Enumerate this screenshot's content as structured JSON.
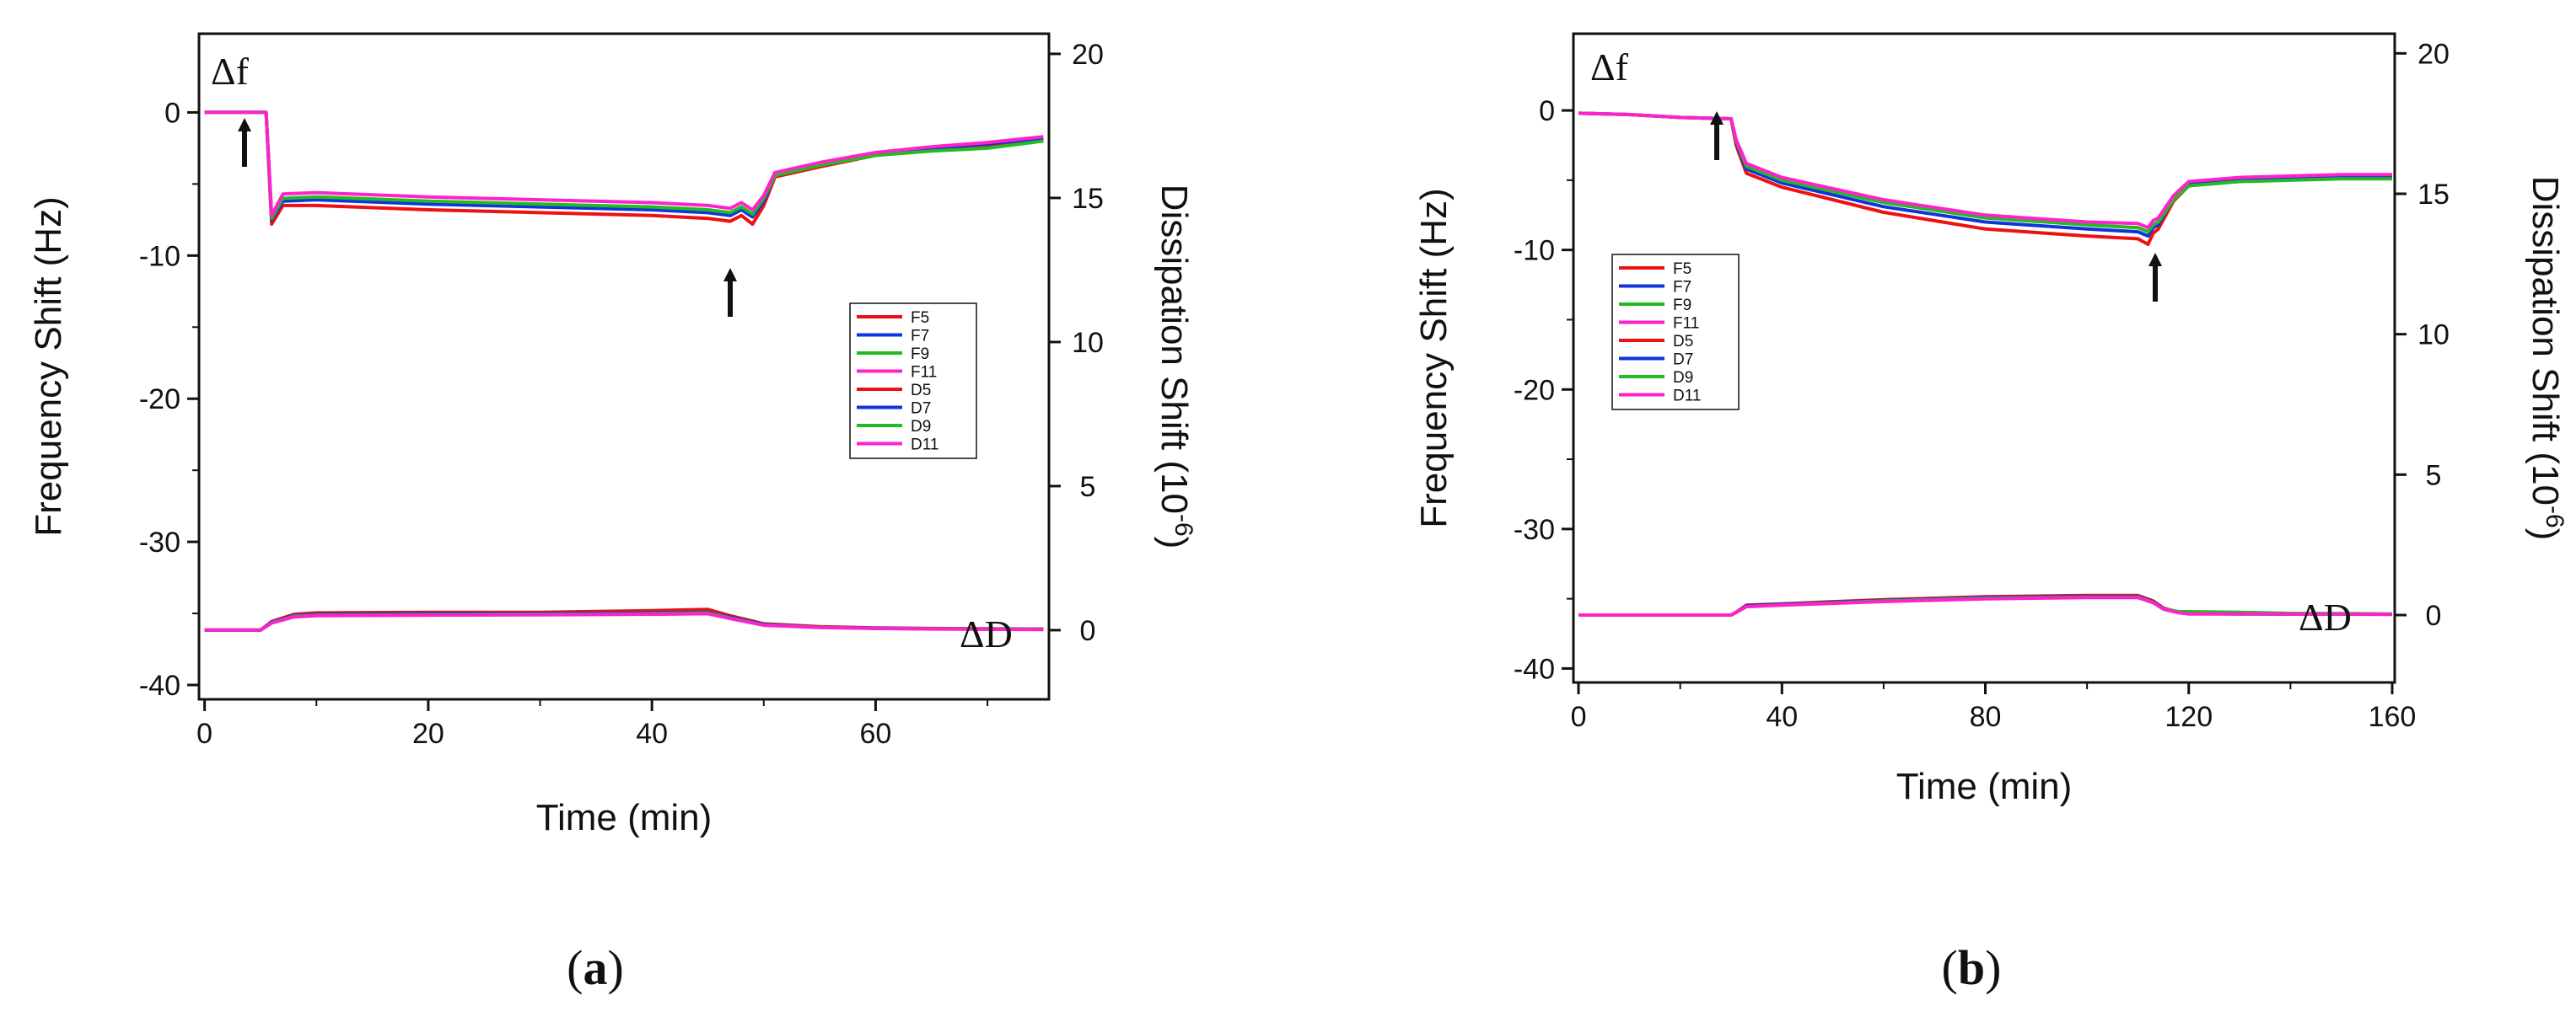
{
  "chart_data": [
    {
      "id": "a",
      "type": "line",
      "panel_label": {
        "open": "(",
        "letter": "a",
        "close": ")"
      },
      "xlabel": "Time (min)",
      "ylabel_left": "Frequency Shift (Hz)",
      "ylabel_right": {
        "text": "Dissipation Shift (10",
        "sup": "-6",
        "close": ")"
      },
      "xlim": [
        -0.5,
        75.5
      ],
      "xticks": [
        0,
        20,
        40,
        60
      ],
      "ylim_left": [
        -41,
        5.5
      ],
      "yticks_left": [
        0,
        -10,
        -20,
        -30,
        -40
      ],
      "ylim_right": [
        -2.4,
        20.7
      ],
      "yticks_right": [
        20,
        15,
        10,
        5,
        0
      ],
      "annotations": {
        "delta_f": "Δf",
        "delta_d": "ΔD",
        "arrows_at": [
          4,
          47
        ]
      },
      "legend": [
        "F5",
        "F7",
        "F9",
        "F11",
        "D5",
        "D7",
        "D9",
        "D11"
      ],
      "series": [
        {
          "name": "F5",
          "color": "#ee1111",
          "axis": "left",
          "x": [
            0,
            5.5,
            6,
            7,
            10,
            20,
            30,
            40,
            45,
            47,
            48,
            49,
            50,
            51,
            55,
            60,
            65,
            70,
            75
          ],
          "y": [
            0,
            0,
            -7.8,
            -6.5,
            -6.5,
            -6.8,
            -7.0,
            -7.2,
            -7.4,
            -7.6,
            -7.2,
            -7.8,
            -6.5,
            -4.5,
            -3.8,
            -3.0,
            -2.6,
            -2.3,
            -1.9
          ]
        },
        {
          "name": "F7",
          "color": "#1133dd",
          "axis": "left",
          "x": [
            0,
            5.5,
            6,
            7,
            10,
            20,
            30,
            40,
            45,
            47,
            48,
            49,
            50,
            51,
            55,
            60,
            65,
            70,
            75
          ],
          "y": [
            0,
            0,
            -7.5,
            -6.2,
            -6.1,
            -6.4,
            -6.6,
            -6.8,
            -7.0,
            -7.2,
            -6.8,
            -7.3,
            -6.2,
            -4.3,
            -3.6,
            -2.9,
            -2.5,
            -2.2,
            -1.8
          ]
        },
        {
          "name": "F9",
          "color": "#22bb22",
          "axis": "left",
          "x": [
            0,
            5.5,
            6,
            7,
            10,
            20,
            30,
            40,
            45,
            47,
            48,
            49,
            50,
            51,
            55,
            60,
            65,
            70,
            75
          ],
          "y": [
            0,
            0,
            -7.4,
            -6.0,
            -5.9,
            -6.2,
            -6.4,
            -6.6,
            -6.8,
            -7.0,
            -6.6,
            -7.1,
            -6.0,
            -4.4,
            -3.7,
            -3.0,
            -2.7,
            -2.5,
            -2.0
          ]
        },
        {
          "name": "F11",
          "color": "#ff22cc",
          "axis": "left",
          "x": [
            0,
            5.5,
            6,
            7,
            10,
            20,
            30,
            40,
            45,
            47,
            48,
            49,
            50,
            51,
            55,
            60,
            65,
            70,
            75
          ],
          "y": [
            0,
            0,
            -7.2,
            -5.7,
            -5.6,
            -5.9,
            -6.1,
            -6.3,
            -6.5,
            -6.7,
            -6.3,
            -6.8,
            -5.8,
            -4.2,
            -3.5,
            -2.8,
            -2.4,
            -2.1,
            -1.7
          ]
        },
        {
          "name": "D5",
          "color": "#ee1111",
          "axis": "right",
          "x": [
            0,
            5,
            6,
            8,
            10,
            20,
            30,
            40,
            45,
            47,
            50,
            55,
            60,
            65,
            70,
            75
          ],
          "y": [
            0,
            0,
            0.3,
            0.55,
            0.6,
            0.62,
            0.62,
            0.68,
            0.72,
            0.5,
            0.22,
            0.12,
            0.08,
            0.06,
            0.05,
            0.04
          ]
        },
        {
          "name": "D7",
          "color": "#1133dd",
          "axis": "right",
          "x": [
            0,
            5,
            6,
            8,
            10,
            20,
            30,
            40,
            45,
            47,
            50,
            55,
            60,
            65,
            70,
            75
          ],
          "y": [
            0,
            0,
            0.28,
            0.5,
            0.55,
            0.57,
            0.58,
            0.6,
            0.62,
            0.45,
            0.2,
            0.1,
            0.07,
            0.05,
            0.04,
            0.03
          ]
        },
        {
          "name": "D9",
          "color": "#22bb22",
          "axis": "right",
          "x": [
            0,
            5,
            6,
            8,
            10,
            20,
            30,
            40,
            45,
            47,
            50,
            55,
            60,
            65,
            70,
            75
          ],
          "y": [
            0,
            0,
            0.26,
            0.48,
            0.52,
            0.54,
            0.55,
            0.57,
            0.6,
            0.42,
            0.18,
            0.1,
            0.06,
            0.05,
            0.04,
            0.03
          ]
        },
        {
          "name": "D11",
          "color": "#ff22cc",
          "axis": "right",
          "x": [
            0,
            5,
            6,
            8,
            10,
            20,
            30,
            40,
            45,
            47,
            50,
            55,
            60,
            65,
            70,
            75
          ],
          "y": [
            0,
            0,
            0.25,
            0.46,
            0.5,
            0.52,
            0.53,
            0.55,
            0.57,
            0.4,
            0.17,
            0.09,
            0.06,
            0.04,
            0.03,
            0.02
          ]
        }
      ]
    },
    {
      "id": "b",
      "type": "line",
      "panel_label": {
        "open": "(",
        "letter": "b",
        "close": ")"
      },
      "xlabel": "Time (min)",
      "ylabel_left": "Frequency Shift (Hz)",
      "ylabel_right": {
        "text": "Dissipation Shift (10",
        "sup": "-6",
        "close": ")"
      },
      "xlim": [
        -1,
        160.5
      ],
      "xticks": [
        0,
        40,
        80,
        120,
        160
      ],
      "ylim_left": [
        -41,
        5.5
      ],
      "yticks_left": [
        0,
        -10,
        -20,
        -30,
        -40
      ],
      "ylim_right": [
        -2.4,
        20.7
      ],
      "yticks_right": [
        20,
        15,
        10,
        5,
        0
      ],
      "annotations": {
        "delta_f": "Δf",
        "delta_d": "ΔD",
        "arrows_at": [
          28,
          113
        ]
      },
      "legend": [
        "F5",
        "F7",
        "F9",
        "F11",
        "D5",
        "D7",
        "D9",
        "D11"
      ],
      "series": [
        {
          "name": "F5",
          "color": "#ee1111",
          "axis": "left",
          "x": [
            0,
            10,
            20,
            30,
            31,
            33,
            40,
            60,
            80,
            100,
            110,
            112,
            113,
            114,
            117,
            120,
            130,
            140,
            150,
            160
          ],
          "y": [
            -0.2,
            -0.3,
            -0.5,
            -0.6,
            -2.5,
            -4.5,
            -5.5,
            -7.3,
            -8.5,
            -9.0,
            -9.2,
            -9.6,
            -8.8,
            -8.5,
            -6.5,
            -5.4,
            -5.0,
            -4.9,
            -4.8,
            -4.8
          ]
        },
        {
          "name": "F7",
          "color": "#1133dd",
          "axis": "left",
          "x": [
            0,
            10,
            20,
            30,
            31,
            33,
            40,
            60,
            80,
            100,
            110,
            112,
            113,
            114,
            117,
            120,
            130,
            140,
            150,
            160
          ],
          "y": [
            -0.2,
            -0.3,
            -0.5,
            -0.6,
            -2.3,
            -4.2,
            -5.2,
            -6.9,
            -8.0,
            -8.5,
            -8.7,
            -9.0,
            -8.4,
            -8.2,
            -6.3,
            -5.2,
            -4.9,
            -4.8,
            -4.7,
            -4.7
          ]
        },
        {
          "name": "F9",
          "color": "#22bb22",
          "axis": "left",
          "x": [
            0,
            10,
            20,
            30,
            31,
            33,
            40,
            60,
            80,
            100,
            110,
            112,
            113,
            114,
            117,
            120,
            130,
            140,
            150,
            160
          ],
          "y": [
            -0.2,
            -0.3,
            -0.5,
            -0.6,
            -2.2,
            -4.0,
            -5.0,
            -6.6,
            -7.7,
            -8.2,
            -8.4,
            -8.7,
            -8.2,
            -8.0,
            -6.4,
            -5.4,
            -5.1,
            -5.0,
            -4.9,
            -4.9
          ]
        },
        {
          "name": "F11",
          "color": "#ff22cc",
          "axis": "left",
          "x": [
            0,
            10,
            20,
            30,
            31,
            33,
            40,
            60,
            80,
            100,
            110,
            112,
            113,
            114,
            117,
            120,
            130,
            140,
            150,
            160
          ],
          "y": [
            -0.2,
            -0.3,
            -0.5,
            -0.6,
            -2.1,
            -3.8,
            -4.8,
            -6.4,
            -7.5,
            -8.0,
            -8.1,
            -8.4,
            -7.9,
            -7.7,
            -6.1,
            -5.1,
            -4.8,
            -4.7,
            -4.6,
            -4.6
          ]
        },
        {
          "name": "D5",
          "color": "#ee1111",
          "axis": "right",
          "x": [
            0,
            10,
            20,
            30,
            31,
            33,
            40,
            60,
            80,
            100,
            110,
            113,
            115,
            118,
            120,
            130,
            140,
            150,
            160
          ],
          "y": [
            0,
            0,
            0,
            0,
            0.1,
            0.35,
            0.4,
            0.55,
            0.65,
            0.7,
            0.7,
            0.5,
            0.25,
            0.1,
            0.05,
            0.05,
            0.04,
            0.03,
            0.03
          ]
        },
        {
          "name": "D7",
          "color": "#1133dd",
          "axis": "right",
          "x": [
            0,
            10,
            20,
            30,
            31,
            33,
            40,
            60,
            80,
            100,
            110,
            113,
            115,
            118,
            120,
            130,
            140,
            150,
            160
          ],
          "y": [
            0,
            0,
            0,
            0,
            0.1,
            0.33,
            0.38,
            0.52,
            0.62,
            0.66,
            0.66,
            0.47,
            0.23,
            0.09,
            0.05,
            0.04,
            0.04,
            0.03,
            0.03
          ]
        },
        {
          "name": "D9",
          "color": "#22bb22",
          "axis": "right",
          "x": [
            0,
            10,
            20,
            30,
            31,
            33,
            40,
            60,
            80,
            100,
            110,
            113,
            115,
            118,
            120,
            130,
            140,
            150,
            160
          ],
          "y": [
            0,
            0,
            0,
            0,
            0.1,
            0.3,
            0.36,
            0.5,
            0.6,
            0.64,
            0.64,
            0.45,
            0.22,
            0.12,
            0.12,
            0.1,
            0.06,
            0.05,
            0.04
          ]
        },
        {
          "name": "D11",
          "color": "#ff22cc",
          "axis": "right",
          "x": [
            0,
            10,
            20,
            30,
            31,
            33,
            40,
            60,
            80,
            100,
            110,
            113,
            115,
            118,
            120,
            130,
            140,
            150,
            160
          ],
          "y": [
            0,
            0,
            0,
            0,
            0.1,
            0.3,
            0.35,
            0.48,
            0.58,
            0.62,
            0.62,
            0.44,
            0.21,
            0.08,
            0.04,
            0.04,
            0.03,
            0.03,
            0.02
          ]
        }
      ]
    }
  ]
}
